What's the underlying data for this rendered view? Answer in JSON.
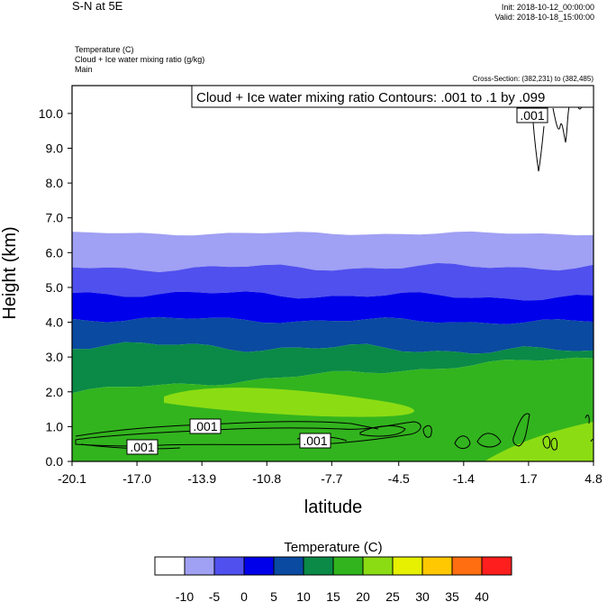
{
  "header": {
    "title": "S-N at 5E",
    "init": "Init: 2018-10-12_00:00:00",
    "valid": "Valid: 2018-10-18_15:00:00",
    "field1": "Temperature   (C)",
    "field2": "Cloud + Ice water mixing ratio   (g/kg)",
    "field3": "Main",
    "cross_section": "Cross-Section: (382,231) to (382,485)"
  },
  "contour_box": {
    "text": "Cloud + Ice water mixing ratio Contours: .001 to .1 by .099"
  },
  "contour_labels": [
    ".001",
    ".001",
    ".001",
    ".001"
  ],
  "legend_title": "Temperature  (C)",
  "colors": {
    "bands": [
      "#ffffff",
      "#a0a0f4",
      "#5050ee",
      "#0000ea",
      "#0a4aa0",
      "#0a8a46",
      "#32b41e",
      "#8cdc14",
      "#e6f000",
      "#ffc800",
      "#ff6e10",
      "#ff1e1e"
    ],
    "contour": "#000000"
  },
  "chart_data": {
    "type": "contour-filled cross-section",
    "xlabel": "latitude",
    "ylabel": "Height (km)",
    "xlim": [
      -20.1,
      4.8
    ],
    "ylim": [
      0.0,
      10.8
    ],
    "x_ticks": [
      "-20.1",
      "-17.0",
      "-13.9",
      "-10.8",
      "-7.7",
      "-4.5",
      "-1.4",
      "1.7",
      "4.8"
    ],
    "y_ticks": [
      "0.0",
      "1.0",
      "2.0",
      "3.0",
      "4.0",
      "5.0",
      "6.0",
      "7.0",
      "8.0",
      "9.0",
      "10.0"
    ],
    "legend_ticks": [
      "-10",
      "-5",
      "0",
      "5",
      "10",
      "15",
      "20",
      "25",
      "30",
      "35",
      "40"
    ],
    "temperature_levels_C": [
      -10,
      -5,
      0,
      5,
      10,
      15,
      20,
      25,
      30,
      35,
      40
    ],
    "filled_layers": [
      {
        "range_C": "-10 to -5",
        "approx_height_km": [
          5.7,
          6.6
        ]
      },
      {
        "range_C": "-5 to 0",
        "approx_height_km": [
          4.9,
          5.8
        ]
      },
      {
        "range_C": "0 to 5",
        "approx_height_km": [
          4.2,
          5.0
        ]
      },
      {
        "range_C": "5 to 10",
        "approx_height_km": [
          3.4,
          4.3
        ]
      },
      {
        "range_C": "10 to 15",
        "approx_height_km": [
          2.0,
          3.5
        ]
      },
      {
        "range_C": "15 to 20",
        "approx_height_km": [
          0.0,
          2.2
        ]
      },
      {
        "range_C": "20 to 25",
        "approx_height_km": [
          1.5,
          2.2
        ]
      }
    ]
  }
}
